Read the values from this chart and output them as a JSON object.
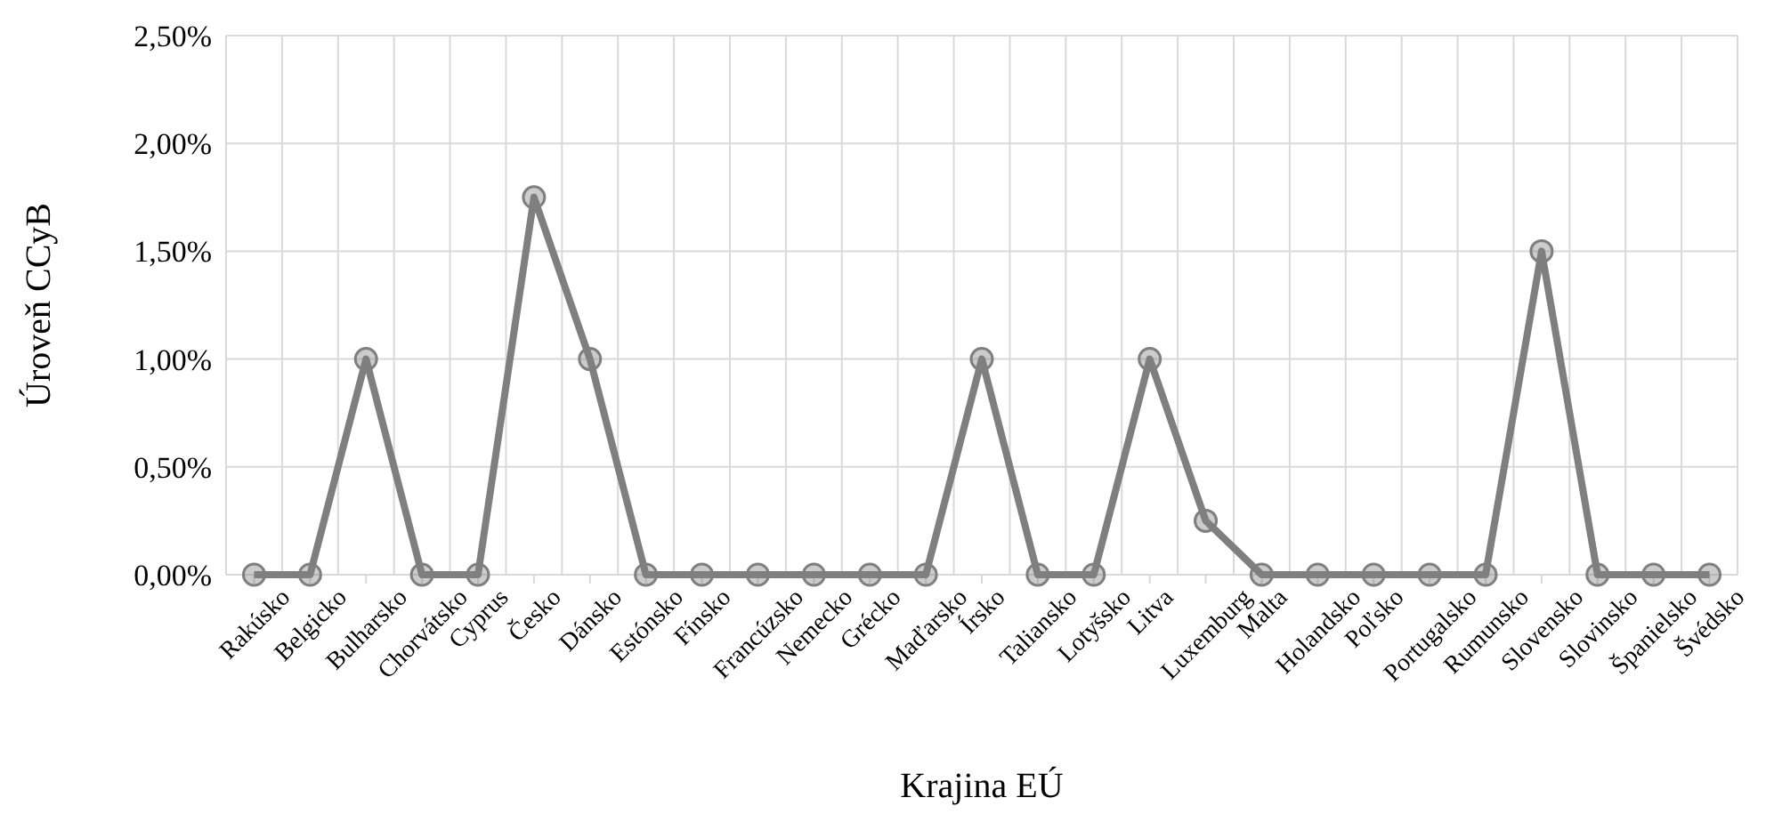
{
  "chart_data": {
    "type": "line",
    "xlabel": "Krajina EÚ",
    "ylabel": "Úroveň CCyB",
    "categories": [
      "Rakúsko",
      "Belgicko",
      "Bulharsko",
      "Chorvátsko",
      "Cyprus",
      "Česko",
      "Dánsko",
      "Estónsko",
      "Fínsko",
      "Francúzsko",
      "Nemecko",
      "Grécko",
      "Maďarsko",
      "Írsko",
      "Taliansko",
      "Lotyšsko",
      "Litva",
      "Luxemburg",
      "Malta",
      "Holandsko",
      "Poľsko",
      "Portugalsko",
      "Rumunsko",
      "Slovensko",
      "Slovinsko",
      "Španielsko",
      "Švédsko"
    ],
    "series": [
      {
        "color": "#7f7f7f",
        "values": [
          0,
          0,
          1,
          0,
          0,
          1.75,
          1,
          0,
          0,
          0,
          0,
          0,
          0,
          1,
          0,
          0,
          1,
          0.25,
          0,
          0,
          0,
          0,
          0,
          1.5,
          0,
          0,
          0
        ]
      }
    ],
    "ylim": [
      0,
      2.5
    ],
    "yticks": [
      {
        "value": 0,
        "label": "0,00%"
      },
      {
        "value": 0.5,
        "label": "0,50%"
      },
      {
        "value": 1,
        "label": "1,00%"
      },
      {
        "value": 1.5,
        "label": "1,50%"
      },
      {
        "value": 2,
        "label": "2,00%"
      },
      {
        "value": 2.5,
        "label": "2,50%"
      }
    ],
    "grid": true,
    "marker": "circle",
    "line_style": "solid"
  }
}
